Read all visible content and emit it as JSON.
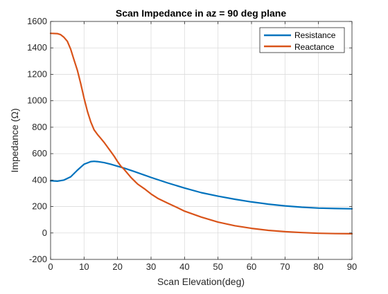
{
  "chart_data": {
    "type": "line",
    "title": "Scan Impedance in az = 90 deg plane",
    "xlabel": "Scan Elevation(deg)",
    "ylabel": "Impedance (Ω)",
    "xlim": [
      0,
      90
    ],
    "ylim": [
      -200,
      1600
    ],
    "xticks": [
      0,
      10,
      20,
      30,
      40,
      50,
      60,
      70,
      80,
      90
    ],
    "yticks": [
      -200,
      0,
      200,
      400,
      600,
      800,
      1000,
      1200,
      1400,
      1600
    ],
    "grid": true,
    "legend_position": "top-right",
    "series": [
      {
        "name": "Resistance",
        "color": "#0072BD",
        "x": [
          0,
          2,
          4,
          6,
          8,
          10,
          12,
          13,
          14,
          16,
          18,
          20,
          22,
          25,
          30,
          35,
          40,
          45,
          50,
          55,
          60,
          65,
          70,
          75,
          80,
          85,
          90
        ],
        "y": [
          395,
          392,
          400,
          425,
          475,
          520,
          540,
          542,
          540,
          532,
          520,
          505,
          490,
          465,
          420,
          378,
          340,
          305,
          278,
          255,
          235,
          218,
          205,
          195,
          188,
          185,
          183
        ]
      },
      {
        "name": "Reactance",
        "color": "#D95319",
        "x": [
          0,
          2,
          3,
          4,
          5,
          6,
          7,
          8,
          9,
          10,
          11,
          12,
          13,
          14,
          15,
          16,
          17,
          18,
          19,
          20,
          21,
          22,
          23,
          24,
          25,
          26,
          28,
          30,
          32,
          35,
          38,
          40,
          45,
          50,
          55,
          60,
          65,
          70,
          75,
          80,
          85,
          90
        ],
        "y": [
          1510,
          1508,
          1500,
          1480,
          1450,
          1390,
          1310,
          1230,
          1130,
          1020,
          920,
          840,
          780,
          745,
          715,
          685,
          650,
          615,
          580,
          540,
          505,
          480,
          450,
          420,
          395,
          370,
          335,
          295,
          262,
          225,
          190,
          165,
          120,
          82,
          55,
          35,
          20,
          10,
          3,
          -2,
          -5,
          -6
        ]
      }
    ]
  }
}
